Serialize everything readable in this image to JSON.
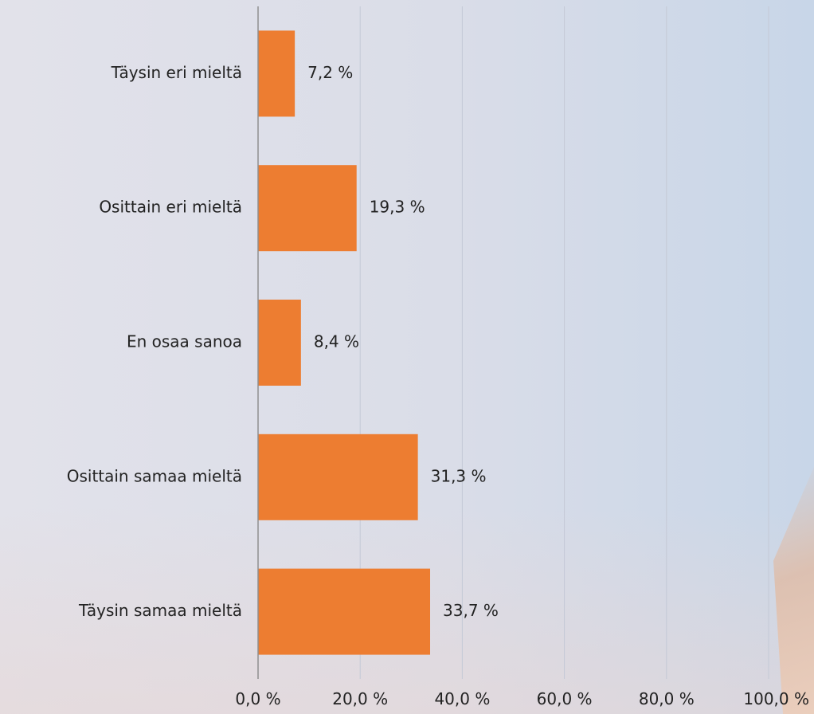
{
  "chart_data": {
    "type": "bar",
    "orientation": "horizontal",
    "categories": [
      "Täysin eri mieltä",
      "Osittain eri mieltä",
      "En osaa sanoa",
      "Osittain samaa mieltä",
      "Täysin samaa mieltä"
    ],
    "values": [
      7.2,
      19.3,
      8.4,
      31.3,
      33.7
    ],
    "value_labels": [
      "7,2 %",
      "19,3 %",
      "8,4 %",
      "31,3 %",
      "33,7 %"
    ],
    "x_ticks": [
      "0,0 %",
      "20,0 %",
      "40,0 %",
      "60,0 %",
      "80,0 %",
      "100,0 %"
    ],
    "xlim": [
      0,
      100
    ],
    "grid": "vertical",
    "legend": "none",
    "bar_color": "#ed7d31",
    "title": "",
    "xlabel": "",
    "ylabel": ""
  }
}
